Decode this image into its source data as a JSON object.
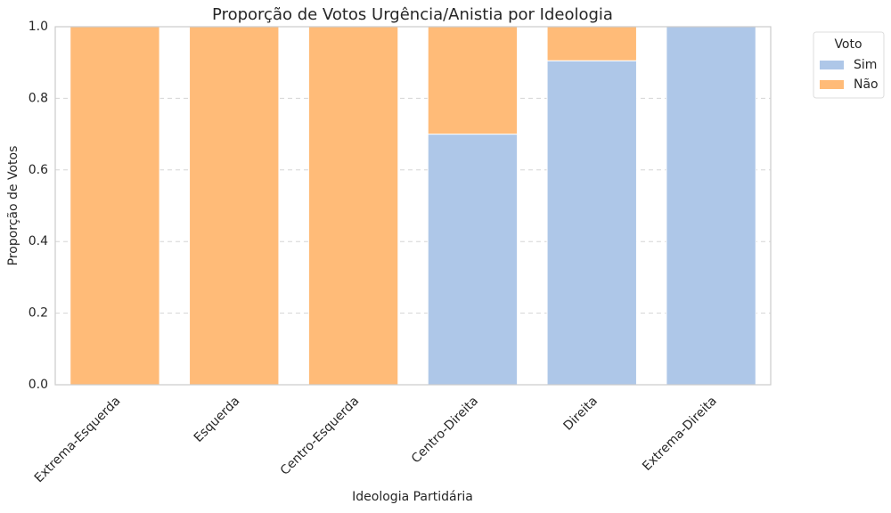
{
  "chart_data": {
    "type": "stacked_bar",
    "title": "Proporção de Votos Urgência/Anistia por Ideologia",
    "xlabel": "Ideologia Partidária",
    "ylabel": "Proporção de Votos",
    "categories": [
      "Extrema-Esquerda",
      "Esquerda",
      "Centro-Esquerda",
      "Centro-Direita",
      "Direita",
      "Extrema-Direita"
    ],
    "series": [
      {
        "name": "Sim",
        "color": "#aec7e8",
        "values": [
          0,
          0,
          0,
          0.7,
          0.905,
          1.0
        ]
      },
      {
        "name": "Não",
        "color": "#ffbb78",
        "values": [
          1.0,
          1.0,
          1.0,
          0.3,
          0.095,
          0
        ]
      }
    ],
    "ylim": [
      0,
      1
    ],
    "yticks": [
      {
        "value": 0,
        "label": "0.0"
      },
      0.2,
      0.4,
      0.6,
      0.8,
      {
        "value": 1,
        "label": "1.0"
      }
    ],
    "grid": true,
    "legend_title": "Voto",
    "legend_position": "outside-right"
  }
}
